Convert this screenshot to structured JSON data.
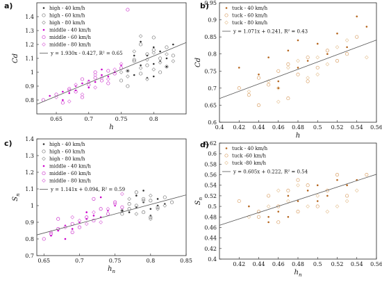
{
  "chart_data": [
    {
      "panel": "a)",
      "type": "scatter",
      "xlabel": "h",
      "ylabel": "Cd",
      "xlim": [
        0.62,
        0.85
      ],
      "ylim": [
        0.7,
        1.5
      ],
      "xticks": [
        0.65,
        0.7,
        0.75,
        0.8
      ],
      "yticks": [
        0.8,
        0.9,
        1,
        1.1,
        1.2,
        1.3,
        1.4
      ],
      "grid": false,
      "legend_position": "top-left",
      "fit": {
        "label": "y = 1.930x - 0.427, R² = 0.65",
        "slope": 1.93,
        "intercept": -0.427
      },
      "series": [
        {
          "name": "high - 40 km/h",
          "marker": "dot",
          "color": "#333333",
          "x": [
            0.77,
            0.78,
            0.79,
            0.8,
            0.81,
            0.82,
            0.78,
            0.8,
            0.76,
            0.79,
            0.81,
            0.83,
            0.77,
            0.8,
            0.82
          ],
          "y": [
            0.98,
            1.05,
            1.12,
            1.06,
            1.15,
            1.1,
            1.22,
            1.18,
            1.01,
            0.96,
            1.08,
            1.2,
            1.12,
            0.97,
            1.04
          ]
        },
        {
          "name": "high - 60 km/h",
          "marker": "circle",
          "color": "#777777",
          "x": [
            0.75,
            0.76,
            0.77,
            0.78,
            0.79,
            0.8,
            0.81,
            0.82,
            0.83,
            0.78,
            0.8,
            0.76,
            0.79,
            0.82,
            0.81,
            0.77
          ],
          "y": [
            0.94,
            1.01,
            1.08,
            0.99,
            1.05,
            1.16,
            1.1,
            1.04,
            1.12,
            1.2,
            1.25,
            0.9,
            1.13,
            1.18,
            1.0,
            1.09
          ]
        },
        {
          "name": "high - 80 km/h",
          "marker": "diamond",
          "color": "#999999",
          "x": [
            0.76,
            0.78,
            0.79,
            0.8,
            0.81,
            0.82,
            0.77,
            0.79,
            0.8,
            0.83,
            0.75,
            0.78
          ],
          "y": [
            0.97,
            1.03,
            1.09,
            1.14,
            1.07,
            1.13,
            1.15,
            0.95,
            1.02,
            1.08,
            1.0,
            1.26
          ]
        },
        {
          "name": "middle - 40 km/h",
          "marker": "dot",
          "color": "#cc00cc",
          "x": [
            0.64,
            0.66,
            0.67,
            0.68,
            0.69,
            0.7,
            0.71,
            0.72,
            0.73,
            0.74,
            0.68,
            0.7,
            0.72,
            0.66,
            0.75
          ],
          "y": [
            0.83,
            0.86,
            0.85,
            0.9,
            0.92,
            0.94,
            0.93,
            0.98,
            0.97,
            1.0,
            0.87,
            0.89,
            1.02,
            0.8,
            1.05
          ]
        },
        {
          "name": "middle - 60 km/h",
          "marker": "circle",
          "color": "#cc33cc",
          "x": [
            0.63,
            0.65,
            0.67,
            0.68,
            0.69,
            0.7,
            0.71,
            0.72,
            0.73,
            0.74,
            0.75,
            0.69,
            0.71,
            0.73,
            0.66,
            0.76
          ],
          "y": [
            0.8,
            0.84,
            0.88,
            0.86,
            0.95,
            0.91,
            0.96,
            0.94,
            1.01,
            0.99,
            1.03,
            0.82,
            1.0,
            0.92,
            0.78,
            1.45
          ]
        },
        {
          "name": "middle - 80 km/h",
          "marker": "diamond",
          "color": "#dd77dd",
          "x": [
            0.65,
            0.67,
            0.68,
            0.7,
            0.71,
            0.72,
            0.73,
            0.74,
            0.69,
            0.71,
            0.75,
            0.67
          ],
          "y": [
            0.82,
            0.87,
            0.91,
            0.93,
            0.89,
            0.96,
            0.95,
            1.02,
            0.84,
            0.98,
            1.06,
            0.79
          ]
        }
      ]
    },
    {
      "panel": "b)",
      "type": "scatter",
      "xlabel": "h",
      "ylabel": "Cd",
      "xlim": [
        0.4,
        0.56
      ],
      "ylim": [
        0.6,
        0.95
      ],
      "xticks": [
        0.4,
        0.42,
        0.44,
        0.46,
        0.48,
        0.5,
        0.52,
        0.54,
        0.56
      ],
      "yticks": [
        0.6,
        0.65,
        0.7,
        0.75,
        0.8,
        0.85,
        0.9,
        0.95
      ],
      "grid": false,
      "legend_position": "top-left",
      "fit": {
        "label": "y = 1.071x + 0.241, R² = 0.43",
        "slope": 1.071,
        "intercept": 0.241
      },
      "series": [
        {
          "name": "tuck - 40 km/h",
          "marker": "dot",
          "color": "#b5651d",
          "x": [
            0.42,
            0.44,
            0.45,
            0.46,
            0.47,
            0.48,
            0.49,
            0.5,
            0.51,
            0.52,
            0.53,
            0.54,
            0.46,
            0.48,
            0.55
          ],
          "y": [
            0.76,
            0.74,
            0.79,
            0.72,
            0.81,
            0.84,
            0.78,
            0.83,
            0.8,
            0.86,
            0.82,
            0.91,
            0.7,
            0.76,
            0.88
          ]
        },
        {
          "name": "tuck - 60 km/h",
          "marker": "circle",
          "color": "#d9a066",
          "x": [
            0.42,
            0.43,
            0.44,
            0.45,
            0.46,
            0.47,
            0.48,
            0.49,
            0.5,
            0.51,
            0.52,
            0.53,
            0.54,
            0.47,
            0.49,
            0.44
          ],
          "y": [
            0.7,
            0.68,
            0.73,
            0.71,
            0.75,
            0.77,
            0.74,
            0.79,
            0.76,
            0.81,
            0.78,
            0.8,
            0.85,
            0.67,
            0.72,
            0.65
          ]
        },
        {
          "name": "tuck - 80 km/h",
          "marker": "diamond",
          "color": "#e8c9a0",
          "x": [
            0.43,
            0.45,
            0.46,
            0.47,
            0.48,
            0.49,
            0.5,
            0.51,
            0.52,
            0.53,
            0.55,
            0.46,
            0.5
          ],
          "y": [
            0.69,
            0.72,
            0.7,
            0.76,
            0.78,
            0.73,
            0.79,
            0.77,
            0.82,
            0.84,
            0.79,
            0.66,
            0.74
          ]
        }
      ]
    },
    {
      "panel": "c)",
      "type": "scatter",
      "xlabel": "h_n",
      "ylabel": "S_n",
      "xlim": [
        0.64,
        0.85
      ],
      "ylim": [
        0.7,
        1.4
      ],
      "xticks": [
        0.65,
        0.7,
        0.75,
        0.8,
        0.85
      ],
      "yticks": [
        0.7,
        0.8,
        0.9,
        1,
        1.1,
        1.2,
        1.3,
        1.4
      ],
      "grid": false,
      "legend_position": "top-left",
      "fit": {
        "label": "y = 1.141x + 0.094, R² = 0.59",
        "slope": 1.141,
        "intercept": 0.094
      },
      "series": [
        {
          "name": "high - 40 km/h",
          "marker": "dot",
          "color": "#333333",
          "x": [
            0.77,
            0.78,
            0.79,
            0.8,
            0.81,
            0.82,
            0.78,
            0.8,
            0.76,
            0.79,
            0.81
          ],
          "y": [
            0.96,
            0.99,
            1.02,
            0.98,
            1.04,
            1.01,
            1.06,
            0.94,
            0.97,
            1.09,
            1.0
          ]
        },
        {
          "name": "high - 60 km/h",
          "marker": "circle",
          "color": "#777777",
          "x": [
            0.76,
            0.77,
            0.78,
            0.79,
            0.8,
            0.81,
            0.82,
            0.83,
            0.78,
            0.8,
            0.77,
            0.79
          ],
          "y": [
            0.95,
            0.98,
            1.0,
            0.96,
            1.03,
            0.99,
            1.05,
            1.02,
            1.08,
            0.93,
            1.01,
            1.04
          ]
        },
        {
          "name": "high - 80 km/h",
          "marker": "diamond",
          "color": "#999999",
          "x": [
            0.76,
            0.78,
            0.79,
            0.8,
            0.81,
            0.82,
            0.77,
            0.8
          ],
          "y": [
            0.97,
            0.95,
            1.03,
            1.06,
            0.98,
            1.0,
            1.04,
            0.92
          ]
        },
        {
          "name": "middle - 40 km/h",
          "marker": "dot",
          "color": "#cc00cc",
          "x": [
            0.66,
            0.67,
            0.68,
            0.69,
            0.7,
            0.71,
            0.72,
            0.73,
            0.74,
            0.75,
            0.68,
            0.71,
            0.73
          ],
          "y": [
            0.82,
            0.85,
            0.88,
            0.86,
            0.9,
            0.92,
            0.94,
            0.93,
            0.97,
            1.0,
            0.8,
            0.96,
            1.05
          ]
        },
        {
          "name": "middle - 60 km/h",
          "marker": "circle",
          "color": "#cc33cc",
          "x": [
            0.65,
            0.66,
            0.67,
            0.69,
            0.7,
            0.71,
            0.72,
            0.73,
            0.74,
            0.75,
            0.76,
            0.69,
            0.72,
            0.67
          ],
          "y": [
            0.8,
            0.83,
            0.86,
            0.89,
            0.87,
            0.93,
            0.91,
            0.98,
            0.95,
            1.02,
            0.99,
            0.84,
            1.04,
            0.92
          ]
        },
        {
          "name": "middle - 80 km/h",
          "marker": "diamond",
          "color": "#dd77dd",
          "x": [
            0.66,
            0.68,
            0.7,
            0.71,
            0.72,
            0.74,
            0.75,
            0.69,
            0.73,
            0.76
          ],
          "y": [
            0.84,
            0.87,
            0.91,
            0.89,
            0.96,
            0.98,
            1.01,
            0.93,
            0.9,
            1.07
          ]
        }
      ]
    },
    {
      "panel": "d)",
      "type": "scatter",
      "xlabel": "h_n",
      "ylabel": "S_n",
      "xlim": [
        0.4,
        0.56
      ],
      "ylim": [
        0.4,
        0.62
      ],
      "xticks": [
        0.42,
        0.44,
        0.46,
        0.48,
        0.5,
        0.52,
        0.54,
        0.56
      ],
      "yticks": [
        0.4,
        0.42,
        0.44,
        0.46,
        0.48,
        0.5,
        0.52,
        0.54,
        0.56,
        0.58,
        0.6,
        0.62
      ],
      "grid": false,
      "legend_position": "top-left",
      "fit": {
        "label": "y = 0.605x + 0.222, R² = 0.54",
        "slope": 0.605,
        "intercept": 0.222
      },
      "series": [
        {
          "name": "tuck - 40 km/h",
          "marker": "dot",
          "color": "#b5651d",
          "x": [
            0.43,
            0.45,
            0.46,
            0.47,
            0.48,
            0.49,
            0.5,
            0.51,
            0.52,
            0.53,
            0.54,
            0.47,
            0.5,
            0.45
          ],
          "y": [
            0.5,
            0.48,
            0.49,
            0.52,
            0.51,
            0.53,
            0.54,
            0.52,
            0.55,
            0.54,
            0.55,
            0.48,
            0.51,
            0.47
          ]
        },
        {
          "name": "tuck -60 km/h",
          "marker": "circle",
          "color": "#d9a066",
          "x": [
            0.42,
            0.44,
            0.45,
            0.46,
            0.47,
            0.48,
            0.49,
            0.5,
            0.51,
            0.52,
            0.53,
            0.55,
            0.46,
            0.48,
            0.44
          ],
          "y": [
            0.51,
            0.49,
            0.52,
            0.5,
            0.53,
            0.49,
            0.54,
            0.5,
            0.53,
            0.56,
            0.52,
            0.56,
            0.47,
            0.55,
            0.48
          ]
        },
        {
          "name": "tuck -80 km/h",
          "marker": "diamond",
          "color": "#e8c9a0",
          "x": [
            0.43,
            0.45,
            0.47,
            0.48,
            0.49,
            0.5,
            0.51,
            0.53,
            0.54,
            0.46,
            0.52
          ],
          "y": [
            0.48,
            0.5,
            0.51,
            0.54,
            0.5,
            0.52,
            0.49,
            0.51,
            0.53,
            0.53,
            0.5
          ]
        }
      ]
    }
  ]
}
